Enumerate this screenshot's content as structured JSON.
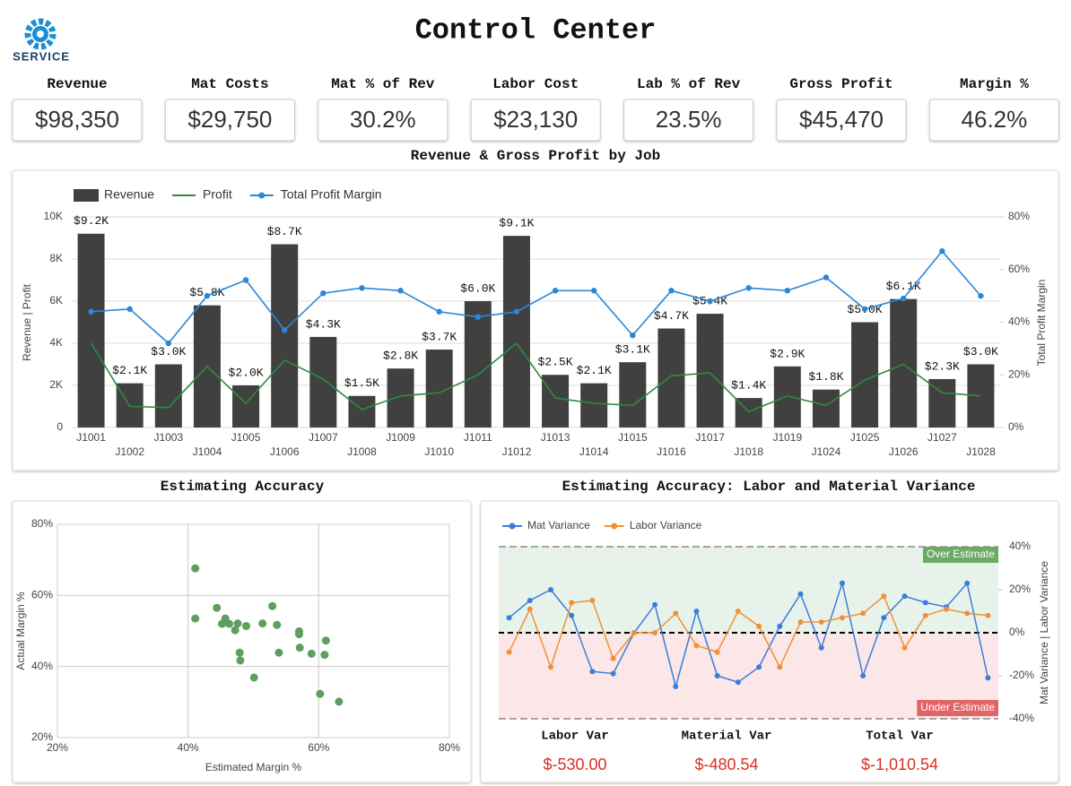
{
  "header": {
    "title": "Control Center",
    "logo_text": "SERVICE"
  },
  "kpis": [
    {
      "label": "Revenue",
      "value": "$98,350"
    },
    {
      "label": "Mat Costs",
      "value": "$29,750"
    },
    {
      "label": "Mat % of Rev",
      "value": "30.2%"
    },
    {
      "label": "Labor Cost",
      "value": "$23,130"
    },
    {
      "label": "Lab % of Rev",
      "value": "23.5%"
    },
    {
      "label": "Gross Profit",
      "value": "$45,470"
    },
    {
      "label": "Margin %",
      "value": "46.2%"
    }
  ],
  "chart_data": [
    {
      "type": "bar",
      "title": "Revenue & Gross Profit by Job",
      "categories": [
        "J1001",
        "J1002",
        "J1003",
        "J1004",
        "J1005",
        "J1006",
        "J1007",
        "J1008",
        "J1009",
        "J1010",
        "J1011",
        "J1012",
        "J1013",
        "J1014",
        "J1015",
        "J1016",
        "J1017",
        "J1018",
        "J1019",
        "J1024",
        "J1025",
        "J1026",
        "J1027",
        "J1028"
      ],
      "series": [
        {
          "name": "Revenue",
          "type": "bar",
          "color": "#404040",
          "values": [
            9200,
            2100,
            3000,
            5800,
            2000,
            8700,
            4300,
            1500,
            2800,
            3700,
            6000,
            9100,
            2500,
            2100,
            3100,
            4700,
            5400,
            1400,
            2900,
            1800,
            5000,
            6100,
            2300,
            3000
          ],
          "value_labels": [
            "$9.2K",
            "$2.1K",
            "$3.0K",
            "$5.8K",
            "$2.0K",
            "$8.7K",
            "$4.3K",
            "$1.5K",
            "$2.8K",
            "$3.7K",
            "$6.0K",
            "$9.1K",
            "$2.5K",
            "$2.1K",
            "$3.1K",
            "$4.7K",
            "$5.4K",
            "$1.4K",
            "$2.9K",
            "$1.8K",
            "$5.0K",
            "$6.1K",
            "$2.3K",
            "$3.0K"
          ]
        },
        {
          "name": "Profit",
          "type": "line",
          "color": "#2e8b3e",
          "values": [
            4000,
            1000,
            950,
            2900,
            1150,
            3200,
            2300,
            850,
            1500,
            1650,
            2500,
            4000,
            1400,
            1150,
            1050,
            2450,
            2600,
            750,
            1500,
            1050,
            2250,
            3000,
            1650,
            1500
          ]
        },
        {
          "name": "Total Profit Margin",
          "type": "line",
          "axis": "y2",
          "markers": true,
          "color": "#2a87d8",
          "values": [
            44,
            45,
            32,
            50,
            56,
            37,
            51,
            53,
            52,
            44,
            42,
            44,
            52,
            52,
            35,
            52,
            48,
            53,
            52,
            57,
            45,
            49,
            67,
            50
          ]
        }
      ],
      "ylabel": "Revenue | Profit",
      "y2label": "Total Profit Margin",
      "ylim": [
        0,
        10000
      ],
      "yticks": [
        0,
        {
          "value": 2000,
          "label": "2K"
        },
        {
          "value": 4000,
          "label": "4K"
        },
        {
          "value": 6000,
          "label": "6K"
        },
        {
          "value": 8000,
          "label": "8K"
        },
        {
          "value": 10000,
          "label": "10K"
        }
      ],
      "y2lim": [
        0,
        80
      ],
      "y2ticks": [
        {
          "value": 0,
          "label": "0%"
        },
        {
          "value": 20,
          "label": "20%"
        },
        {
          "value": 40,
          "label": "40%"
        },
        {
          "value": 60,
          "label": "60%"
        },
        {
          "value": 80,
          "label": "80%"
        }
      ],
      "grid": true,
      "legend": "top-left"
    },
    {
      "type": "scatter",
      "title": "Estimating Accuracy",
      "xlabel": "Estimated Margin %",
      "ylabel": "Actual Margin %",
      "color": "#5f9e5f",
      "x": [
        41.1,
        41.1,
        44.4,
        45.7,
        45.2,
        46.3,
        47.2,
        47.6,
        48.9,
        51.4,
        52.9,
        53.6,
        53.9,
        47.9,
        48.0,
        50.1,
        57.0,
        57.0,
        57.1,
        58.9,
        60.9,
        61.1,
        60.2,
        63.1
      ],
      "values": [
        67.6,
        53.5,
        56.5,
        53.5,
        52.0,
        52.0,
        50.2,
        52.1,
        51.4,
        52.1,
        57.0,
        51.7,
        43.9,
        43.9,
        41.7,
        36.9,
        49.9,
        49.1,
        45.3,
        43.6,
        43.3,
        47.3,
        32.3,
        30.1
      ],
      "xlim": [
        20,
        80
      ],
      "xticks": [
        {
          "value": 20,
          "label": "20%"
        },
        {
          "value": 40,
          "label": "40%"
        },
        {
          "value": 60,
          "label": "60%"
        },
        {
          "value": 80,
          "label": "80%"
        }
      ],
      "ylim": [
        20,
        80
      ],
      "yticks": [
        {
          "value": 20,
          "label": "20%"
        },
        {
          "value": 40,
          "label": "40%"
        },
        {
          "value": 60,
          "label": "60%"
        },
        {
          "value": 80,
          "label": "80%"
        }
      ],
      "grid": true
    },
    {
      "type": "line",
      "title": "Estimating Accuracy: Labor and Material Variance",
      "ylabel": "Mat Variance | Labor Variance",
      "y_axis_side": "right",
      "series": [
        {
          "name": "Mat Variance",
          "color": "#3b7dd8",
          "values": [
            7,
            15,
            20,
            8,
            -18,
            -19,
            0,
            13,
            -25,
            10,
            -20,
            -23,
            -16,
            3,
            18,
            -7,
            23,
            -20,
            7,
            17,
            14,
            12,
            23,
            -21
          ]
        },
        {
          "name": "Labor Variance",
          "color": "#f0913a",
          "values": [
            -9,
            11,
            -16,
            14,
            15,
            -12,
            0,
            0,
            9,
            -6,
            -9,
            10,
            3,
            -16,
            5,
            5,
            7,
            9,
            17,
            -7,
            8,
            11,
            9,
            8
          ]
        }
      ],
      "ylim": [
        -40,
        40
      ],
      "yticks": [
        {
          "value": -40,
          "label": "-40%"
        },
        {
          "value": -20,
          "label": "-20%"
        },
        {
          "value": 0,
          "label": "0%"
        },
        {
          "value": 20,
          "label": "20%"
        },
        {
          "value": 40,
          "label": "40%"
        }
      ],
      "annotations": [
        {
          "text": "Over Estimate",
          "color": "#6aaa64"
        },
        {
          "text": "Under Estimate",
          "color": "#e06666"
        }
      ],
      "legend": "top-left"
    }
  ],
  "variance_summary": [
    {
      "label": "Labor Var",
      "value": "$-530.00"
    },
    {
      "label": "Material Var",
      "value": "$-480.54"
    },
    {
      "label": "Total Var",
      "value": "$-1,010.54"
    }
  ]
}
